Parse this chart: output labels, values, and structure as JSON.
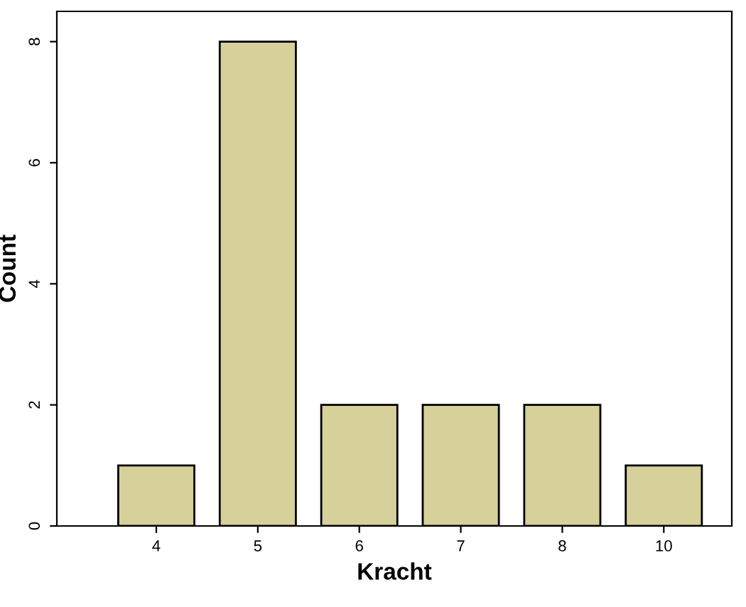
{
  "chart_data": {
    "type": "bar",
    "xlabel": "Kracht",
    "ylabel": "Count",
    "categories": [
      "4",
      "5",
      "6",
      "7",
      "8",
      "10"
    ],
    "values": [
      1,
      8,
      2,
      2,
      2,
      1
    ],
    "color": "#d6d09a",
    "ylim": [
      0,
      8.5
    ],
    "yticks": [
      0,
      2,
      4,
      6,
      8
    ],
    "grid": false,
    "legend": false
  }
}
